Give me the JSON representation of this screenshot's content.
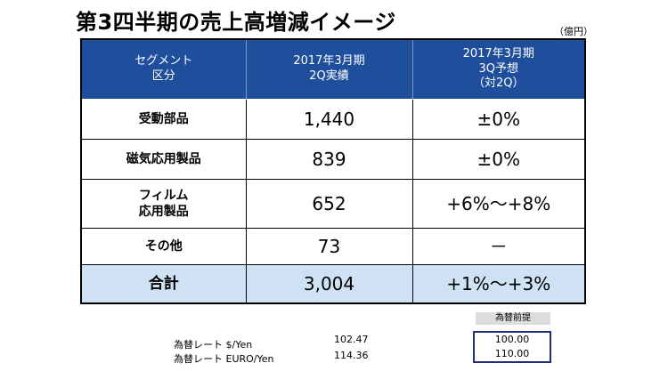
{
  "title": "第3四半期の売上高増減イメージ",
  "unit": "（億円）",
  "table": {
    "headers": {
      "segment": [
        "セグメント",
        "区分"
      ],
      "col1": [
        "2017年3月期",
        "2Q実績"
      ],
      "col2": [
        "2017年3月期",
        "3Q予想",
        "（対2Q）"
      ]
    },
    "rows": [
      {
        "name": [
          "受動部品"
        ],
        "actual": "1,440",
        "forecast": "±0%"
      },
      {
        "name": [
          "磁気応用製品"
        ],
        "actual": "839",
        "forecast": "±0%"
      },
      {
        "name": [
          "フィルム",
          "応用製品"
        ],
        "actual": "652",
        "forecast": "+6%～+8%"
      },
      {
        "name": [
          "その他"
        ],
        "actual": "73",
        "forecast": "－"
      }
    ],
    "total": {
      "name": "合計",
      "actual": "3,004",
      "forecast": "+1%～+3%"
    }
  },
  "fx": {
    "premise_label": "為替前提",
    "rows": [
      {
        "label": "為替レート $/Yen",
        "actual": "102.47",
        "premise": "100.00"
      },
      {
        "label": "為替レート EURO/Yen",
        "actual": "114.36",
        "premise": "110.00"
      }
    ]
  },
  "colors": {
    "header_bg": "#1f4e9c",
    "total_bg": "#cfe2f3",
    "premise_border": "#1f2f7a"
  }
}
